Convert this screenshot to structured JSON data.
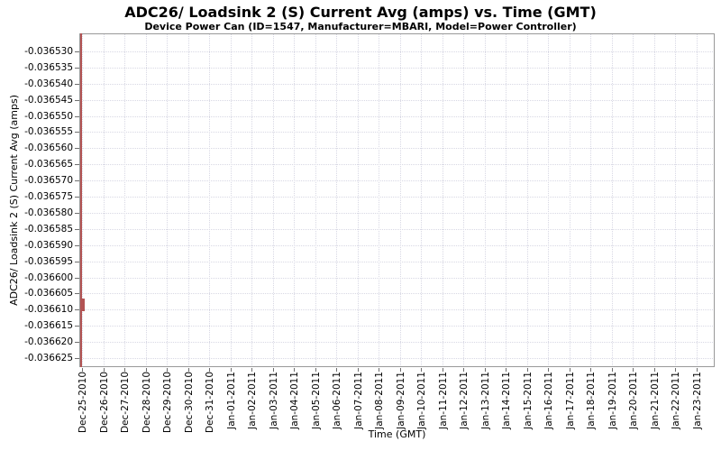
{
  "chart_data": {
    "type": "line",
    "title": "ADC26/ Loadsink 2 (S) Current Avg (amps) vs. Time (GMT)",
    "subtitle": "Device Power Can (ID=1547, Manufacturer=MBARI, Model=Power Controller)",
    "xlabel": "Time (GMT)",
    "ylabel": "ADC26/ Loadsink 2 (S) Current Avg (amps)",
    "legend": "none",
    "grid": "dotted",
    "x_tick_labels": [
      "Dec-25-2010",
      "Dec-26-2010",
      "Dec-27-2010",
      "Dec-28-2010",
      "Dec-29-2010",
      "Dec-30-2010",
      "Dec-31-2010",
      "Jan-01-2011",
      "Jan-02-2011",
      "Jan-03-2011",
      "Jan-04-2011",
      "Jan-05-2011",
      "Jan-06-2011",
      "Jan-07-2011",
      "Jan-08-2011",
      "Jan-09-2011",
      "Jan-10-2011",
      "Jan-11-2011",
      "Jan-12-2011",
      "Jan-13-2011",
      "Jan-14-2011",
      "Jan-15-2011",
      "Jan-16-2011",
      "Jan-17-2011",
      "Jan-18-2011",
      "Jan-19-2011",
      "Jan-20-2011",
      "Jan-21-2011",
      "Jan-22-2011",
      "Jan-23-2011"
    ],
    "y_tick_labels": [
      "-0.036530",
      "-0.036535",
      "-0.036540",
      "-0.036545",
      "-0.036550",
      "-0.036555",
      "-0.036560",
      "-0.036565",
      "-0.036570",
      "-0.036575",
      "-0.036580",
      "-0.036585",
      "-0.036590",
      "-0.036595",
      "-0.036600",
      "-0.036605",
      "-0.036610",
      "-0.036615",
      "-0.036620",
      "-0.036625"
    ],
    "ylim": [
      -0.0366278,
      -0.0365244
    ],
    "xlim": [
      "Dec-25-2010",
      "Jan-24-2011"
    ],
    "series": [
      {
        "name": "ADC26/ Loadsink 2 (S) Current Avg",
        "color": "#b35454",
        "shape": "vertical-spike-at-left-edge",
        "x": "Dec-25-2010",
        "y_min": -0.0366278,
        "y_max": -0.0365244,
        "dense_segment": {
          "y_min": -0.0366105,
          "y_max": -0.0366065
        },
        "note": "All samples occur at the first timestamp (Dec-25-2010); series renders as a thin vertical red line hugging the left axis over the full y range, thicker between about -0.036607 and -0.036610"
      }
    ],
    "colors": {
      "series": "#b35454",
      "grid": "#d8d8e4",
      "plot_border": "#999999",
      "tick": "#6e6e6e",
      "text": "#000000",
      "background": "#ffffff"
    }
  }
}
